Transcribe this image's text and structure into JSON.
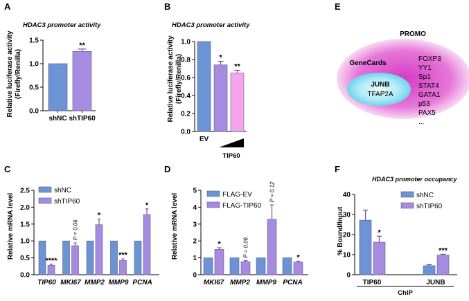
{
  "colors": {
    "blue": "#6c93d4",
    "purple": "#a78be0",
    "pink": "#f4a6ec",
    "gene_cards": "#a8e6f4",
    "promo": "#e060cf",
    "text": "#000000"
  },
  "panel_letters": [
    "A",
    "B",
    "C",
    "D",
    "E",
    "F"
  ],
  "chart_data": [
    {
      "panel": "A",
      "type": "bar",
      "title": "HDAC3 promoter activity",
      "ylabel": [
        "Relative luciferase activity",
        "(Firefly/Renilla)"
      ],
      "ylim": [
        0,
        1.5
      ],
      "yticks": [
        "0.0",
        "0.5",
        "1.0",
        "1.5"
      ],
      "categories": [
        "shNC",
        "shTIP60"
      ],
      "values": [
        1.0,
        1.26
      ],
      "errors": [
        0,
        0.05
      ],
      "significance": [
        "",
        "**"
      ]
    },
    {
      "panel": "B",
      "type": "bar",
      "title": "HDAC3 promoter activity",
      "ylabel": [
        "Relative luciferase activity",
        "(Firefly/Renilla)"
      ],
      "ylim": [
        0,
        1.0
      ],
      "yticks": [
        "0.0",
        "0.2",
        "0.4",
        "0.6",
        "0.8",
        "1.0"
      ],
      "categories": [
        "EV",
        "",
        ""
      ],
      "values": [
        1.0,
        0.74,
        0.65
      ],
      "errors": [
        0,
        0.04,
        0.03
      ],
      "significance": [
        "",
        "*",
        "**"
      ],
      "xlabel": "TIP60"
    },
    {
      "panel": "C",
      "type": "bar",
      "ylabel": "Relative mRNA level",
      "ylim": [
        0,
        2.5
      ],
      "yticks": [
        "0.0",
        "0.5",
        "1.0",
        "1.5",
        "2.0",
        "2.5"
      ],
      "categories": [
        "TIP60",
        "MKI67",
        "MMP2",
        "MMP9",
        "PCNA"
      ],
      "series": [
        {
          "name": "shNC",
          "values": [
            1.0,
            1.0,
            1.0,
            1.0,
            1.0
          ],
          "errors": [
            0,
            0,
            0,
            0,
            0
          ]
        },
        {
          "name": "shTIP60",
          "values": [
            0.28,
            0.86,
            1.48,
            0.42,
            1.78
          ],
          "errors": [
            0.03,
            0.08,
            0.17,
            0.05,
            0.17
          ]
        }
      ],
      "significance": [
        "****",
        "P = 0.06",
        "*",
        "***",
        "*"
      ]
    },
    {
      "panel": "D",
      "type": "bar",
      "ylabel": "Relative mRNA level",
      "ylim": [
        0,
        5
      ],
      "yticks": [
        "0",
        "1",
        "2",
        "3",
        "4",
        "5"
      ],
      "categories": [
        "MKI67",
        "MMP2",
        "MMP9",
        "PCNA"
      ],
      "series": [
        {
          "name": "FLAG-EV",
          "values": [
            1.0,
            1.0,
            1.0,
            1.0
          ],
          "errors": [
            0,
            0,
            0,
            0
          ]
        },
        {
          "name": "FLAG-TIP60",
          "values": [
            1.5,
            0.77,
            3.28,
            0.75
          ],
          "errors": [
            0.1,
            0.06,
            0.85,
            0.05
          ]
        }
      ],
      "significance": [
        "*",
        "P = 0.06",
        "P = 0.12",
        "*"
      ]
    },
    {
      "panel": "F",
      "type": "bar",
      "title": "HDAC3 promoter occupancy",
      "ylabel": "% Bound/Input",
      "ylim": [
        0,
        40
      ],
      "yticks": [
        "0",
        "10",
        "20",
        "30",
        "40"
      ],
      "categories": [
        "TIP60",
        "JUNB"
      ],
      "series": [
        {
          "name": "shNC",
          "values": [
            27.2,
            4.5
          ],
          "errors": [
            5.0,
            0.5
          ]
        },
        {
          "name": "shTIP60",
          "values": [
            16.2,
            9.8
          ],
          "errors": [
            3.0,
            0.4
          ]
        }
      ],
      "significance": [
        "*",
        "***"
      ],
      "xlabel": "ChIP"
    }
  ],
  "venn": {
    "outer_label": "PROMO",
    "inner_label": "GeneCards",
    "overlap_genes": [
      "JUNB",
      "TFAP2A"
    ],
    "promo_genes": [
      "FOXP3",
      "YY1",
      "Sp1",
      "STAT4",
      "GATA1",
      "p53",
      "PAX5",
      "..."
    ]
  }
}
